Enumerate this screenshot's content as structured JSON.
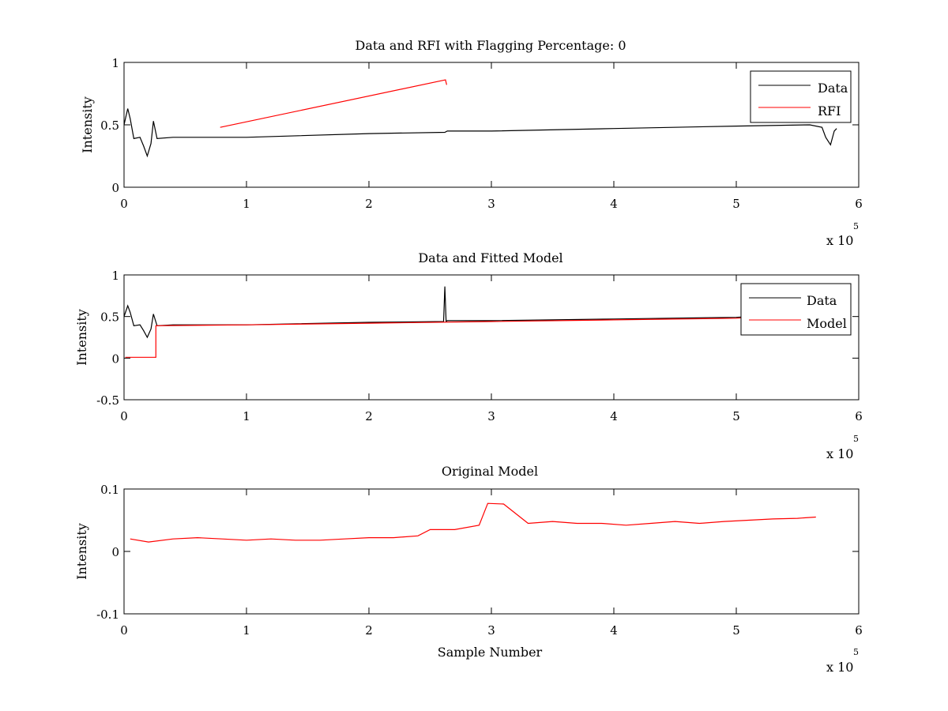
{
  "chart_data": [
    {
      "type": "line",
      "title": "Data and RFI with Flagging Percentage: 0",
      "xlabel": "",
      "ylabel": "Intensity",
      "xlim": [
        0,
        600000
      ],
      "ylim": [
        0,
        1
      ],
      "xticks": [
        "0",
        "1",
        "2",
        "3",
        "4",
        "5",
        "6"
      ],
      "yticks": [
        "0",
        "0.5",
        "1"
      ],
      "x_multiplier": "x 10",
      "x_exponent": "5",
      "legend": {
        "position": "top-right",
        "entries": [
          "Data",
          "RFI"
        ]
      },
      "grid": false,
      "series": [
        {
          "name": "Data",
          "color": "#000000",
          "x": [
            0,
            3000,
            5000,
            8000,
            13000,
            16000,
            19000,
            22000,
            24000,
            27000,
            40000,
            100000,
            200000,
            262000,
            264000,
            300000,
            400000,
            500000,
            560000,
            570000,
            573000,
            577000,
            580000,
            582000
          ],
          "y": [
            0.5,
            0.63,
            0.55,
            0.39,
            0.4,
            0.33,
            0.25,
            0.35,
            0.53,
            0.39,
            0.4,
            0.4,
            0.43,
            0.44,
            0.45,
            0.45,
            0.47,
            0.49,
            0.5,
            0.48,
            0.4,
            0.34,
            0.45,
            0.47
          ]
        },
        {
          "name": "RFI",
          "color": "#ff0000",
          "x": [
            78500,
            262500,
            263500
          ],
          "y": [
            0.48,
            0.86,
            0.82
          ]
        }
      ]
    },
    {
      "type": "line",
      "title": "Data and Fitted Model",
      "xlabel": "",
      "ylabel": "Intensity",
      "xlim": [
        0,
        600000
      ],
      "ylim": [
        -0.5,
        1
      ],
      "xticks": [
        "0",
        "1",
        "2",
        "3",
        "4",
        "5",
        "6"
      ],
      "yticks": [
        "-0.5",
        "0",
        "0.5",
        "1"
      ],
      "x_multiplier": "x 10",
      "x_exponent": "5",
      "legend": {
        "position": "top-right",
        "entries": [
          "Data",
          "Model"
        ]
      },
      "grid": false,
      "series": [
        {
          "name": "Data",
          "color": "#000000",
          "x": [
            0,
            3000,
            5000,
            8000,
            13000,
            16000,
            19000,
            22000,
            24000,
            27000,
            40000,
            100000,
            200000,
            261000,
            262000,
            263000,
            264000,
            300000,
            400000,
            500000,
            510000
          ],
          "y": [
            0.5,
            0.63,
            0.55,
            0.39,
            0.4,
            0.33,
            0.25,
            0.35,
            0.53,
            0.39,
            0.4,
            0.4,
            0.43,
            0.44,
            0.86,
            0.44,
            0.45,
            0.45,
            0.47,
            0.49,
            0.5
          ]
        },
        {
          "name": "Model",
          "color": "#ff0000",
          "x": [
            1000,
            12000,
            26000,
            26000,
            100000,
            200000,
            300000,
            400000,
            500000,
            510000
          ],
          "y": [
            0.01,
            0.01,
            0.01,
            0.39,
            0.4,
            0.42,
            0.44,
            0.46,
            0.48,
            0.49
          ]
        }
      ]
    },
    {
      "type": "line",
      "title": "Original Model",
      "xlabel": "Sample Number",
      "ylabel": "Intensity",
      "xlim": [
        0,
        600000
      ],
      "ylim": [
        -0.1,
        0.1
      ],
      "xticks": [
        "0",
        "1",
        "2",
        "3",
        "4",
        "5",
        "6"
      ],
      "yticks": [
        "-0.1",
        "0",
        "0.1"
      ],
      "x_multiplier": "x 10",
      "x_exponent": "5",
      "grid": false,
      "series": [
        {
          "color": "#ff0000",
          "x": [
            5000,
            20000,
            40000,
            60000,
            80000,
            100000,
            120000,
            140000,
            160000,
            180000,
            200000,
            220000,
            240000,
            250000,
            270000,
            290000,
            297000,
            310000,
            330000,
            350000,
            370000,
            390000,
            410000,
            430000,
            450000,
            470000,
            490000,
            510000,
            530000,
            550000,
            565000
          ],
          "y": [
            0.02,
            0.015,
            0.02,
            0.022,
            0.02,
            0.018,
            0.02,
            0.018,
            0.018,
            0.02,
            0.022,
            0.022,
            0.025,
            0.035,
            0.035,
            0.042,
            0.077,
            0.076,
            0.045,
            0.048,
            0.045,
            0.045,
            0.042,
            0.045,
            0.048,
            0.045,
            0.048,
            0.05,
            0.052,
            0.053,
            0.055
          ]
        }
      ]
    }
  ]
}
